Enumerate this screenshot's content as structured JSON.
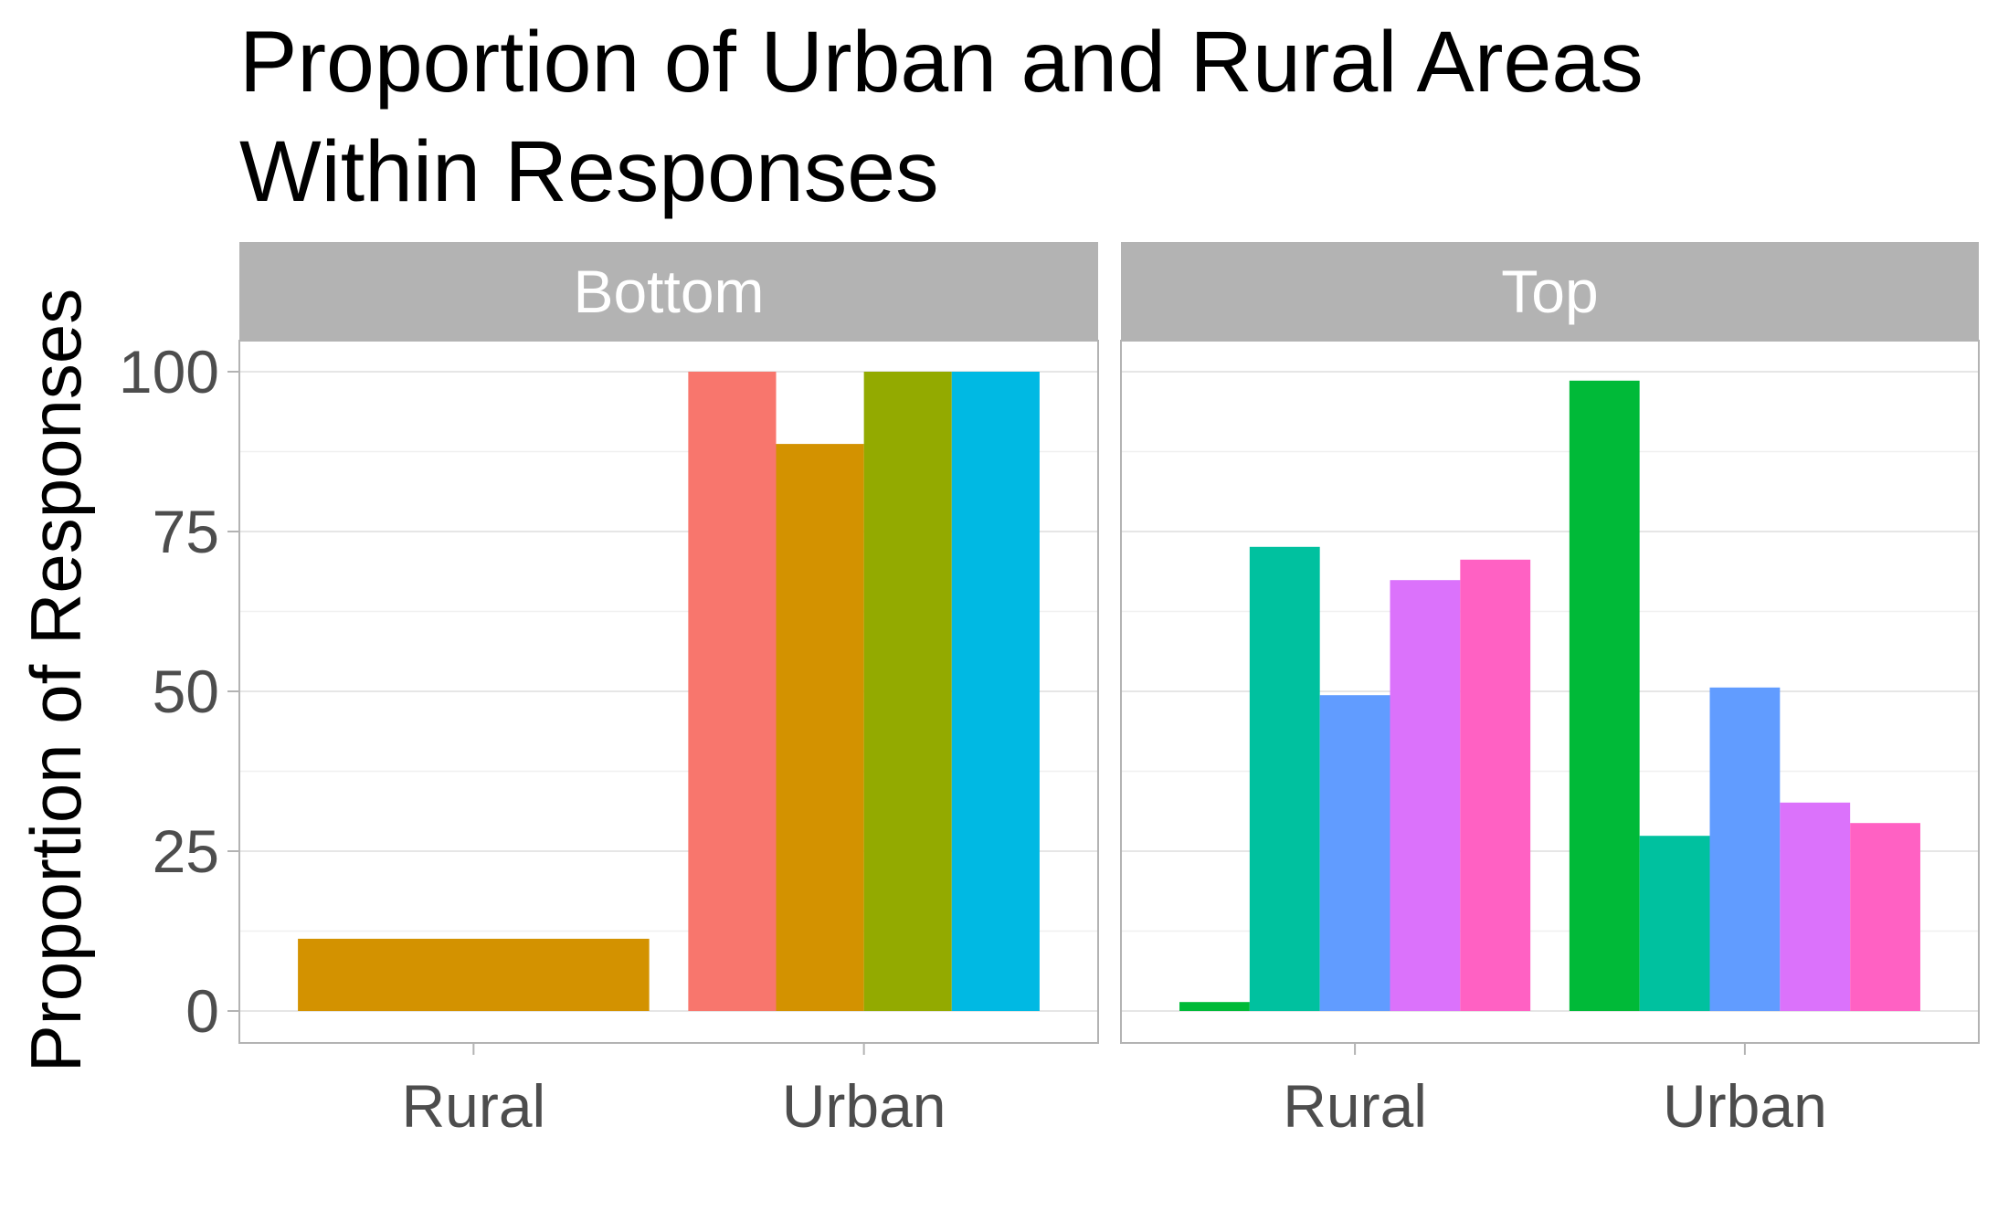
{
  "chart_data": {
    "type": "bar",
    "title_line1": "Proportion of Urban and Rural Areas",
    "title_line2": "Within Responses",
    "xlabel": "",
    "ylabel": "Proportion of Responses",
    "ylim": [
      0,
      100
    ],
    "yticks": [
      "0",
      "25",
      "50",
      "75",
      "100"
    ],
    "categories": [
      "Rural",
      "Urban"
    ],
    "grid": true,
    "legend": "none",
    "panels": [
      {
        "name": "Bottom",
        "groups": [
          {
            "category": "Rural",
            "bars": [
              {
                "value": 11.3,
                "color": "#D39200"
              }
            ]
          },
          {
            "category": "Urban",
            "bars": [
              {
                "value": 100,
                "color": "#F8766D"
              },
              {
                "value": 88.7,
                "color": "#D39200"
              },
              {
                "value": 100,
                "color": "#93AA00"
              },
              {
                "value": 100,
                "color": "#00B9E3"
              }
            ]
          }
        ]
      },
      {
        "name": "Top",
        "groups": [
          {
            "category": "Rural",
            "bars": [
              {
                "value": 1.4,
                "color": "#00BA38"
              },
              {
                "value": 72.6,
                "color": "#00C19F"
              },
              {
                "value": 49.4,
                "color": "#619CFF"
              },
              {
                "value": 67.4,
                "color": "#DB72FB"
              },
              {
                "value": 70.6,
                "color": "#FF61C3"
              }
            ]
          },
          {
            "category": "Urban",
            "bars": [
              {
                "value": 98.6,
                "color": "#00BA38"
              },
              {
                "value": 27.4,
                "color": "#00C19F"
              },
              {
                "value": 50.6,
                "color": "#619CFF"
              },
              {
                "value": 32.6,
                "color": "#DB72FB"
              },
              {
                "value": 29.4,
                "color": "#FF61C3"
              }
            ]
          }
        ]
      }
    ]
  }
}
